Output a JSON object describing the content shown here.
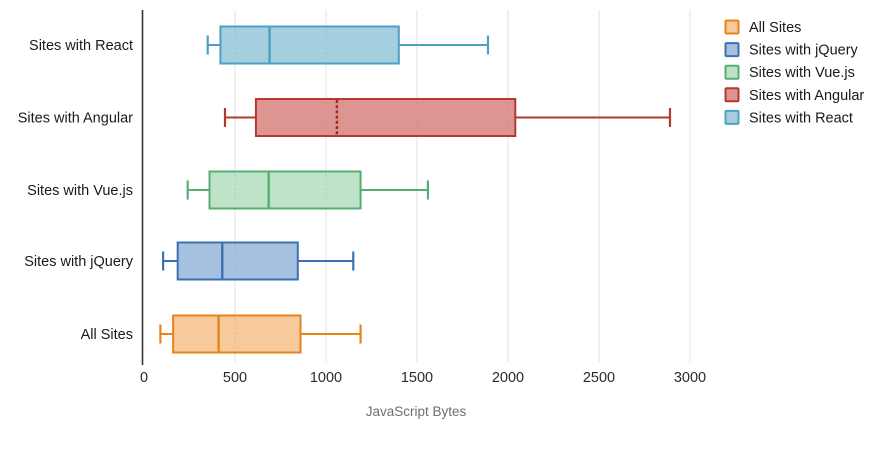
{
  "chart_data": {
    "type": "boxplot",
    "orientation": "horizontal",
    "xlabel": "JavaScript Bytes",
    "x_ticks": [
      0,
      500,
      1000,
      1500,
      2000,
      2500,
      3000
    ],
    "xlim": [
      0,
      3100
    ],
    "grid": "vertical-light-gray",
    "legend_position": "top-right",
    "rows": [
      {
        "label": "Sites with React",
        "low": 350,
        "q1": 420,
        "median": 690,
        "q3": 1400,
        "high": 1890,
        "stroke": "#4D9FC4",
        "fill": "#A5CFDF",
        "median_style": "solid",
        "median_color": "#4D9FC4"
      },
      {
        "label": "Sites with Angular",
        "low": 445,
        "q1": 615,
        "median": 1060,
        "q3": 2040,
        "high": 2890,
        "stroke": "#B23A31",
        "fill": "#DE9490",
        "median_style": "dashed",
        "median_color": "#9E2C21"
      },
      {
        "label": "Sites with Vue.js",
        "low": 240,
        "q1": 360,
        "median": 685,
        "q3": 1190,
        "high": 1560,
        "stroke": "#57AE74",
        "fill": "#BFE3C8",
        "median_style": "solid",
        "median_color": "#57AE74"
      },
      {
        "label": "Sites with jQuery",
        "low": 105,
        "q1": 185,
        "median": 430,
        "q3": 845,
        "high": 1150,
        "stroke": "#3B71B3",
        "fill": "#A6C1E0",
        "median_style": "solid",
        "median_color": "#3B71B3"
      },
      {
        "label": "All Sites",
        "low": 90,
        "q1": 160,
        "median": 410,
        "q3": 860,
        "high": 1190,
        "stroke": "#E8831C",
        "fill": "#F6CA9B",
        "median_style": "solid",
        "median_color": "#E8831C"
      }
    ],
    "legend": [
      {
        "label": "All Sites",
        "stroke": "#E8831C",
        "fill": "#F6CA9B"
      },
      {
        "label": "Sites with jQuery",
        "stroke": "#3B71B3",
        "fill": "#A6C1E0"
      },
      {
        "label": "Sites with Vue.js",
        "stroke": "#57AE74",
        "fill": "#BFE3C8"
      },
      {
        "label": "Sites with Angular",
        "stroke": "#B23A31",
        "fill": "#DE9490"
      },
      {
        "label": "Sites with React",
        "stroke": "#4D9FC4",
        "fill": "#A5CFDF"
      }
    ],
    "colors": {
      "gridline": "#E7E7E7",
      "axis_line": "#333333",
      "tick_text": "#2b2b2b",
      "label_text": "#1a1a1a",
      "title_text": "#6e6e6e"
    }
  }
}
